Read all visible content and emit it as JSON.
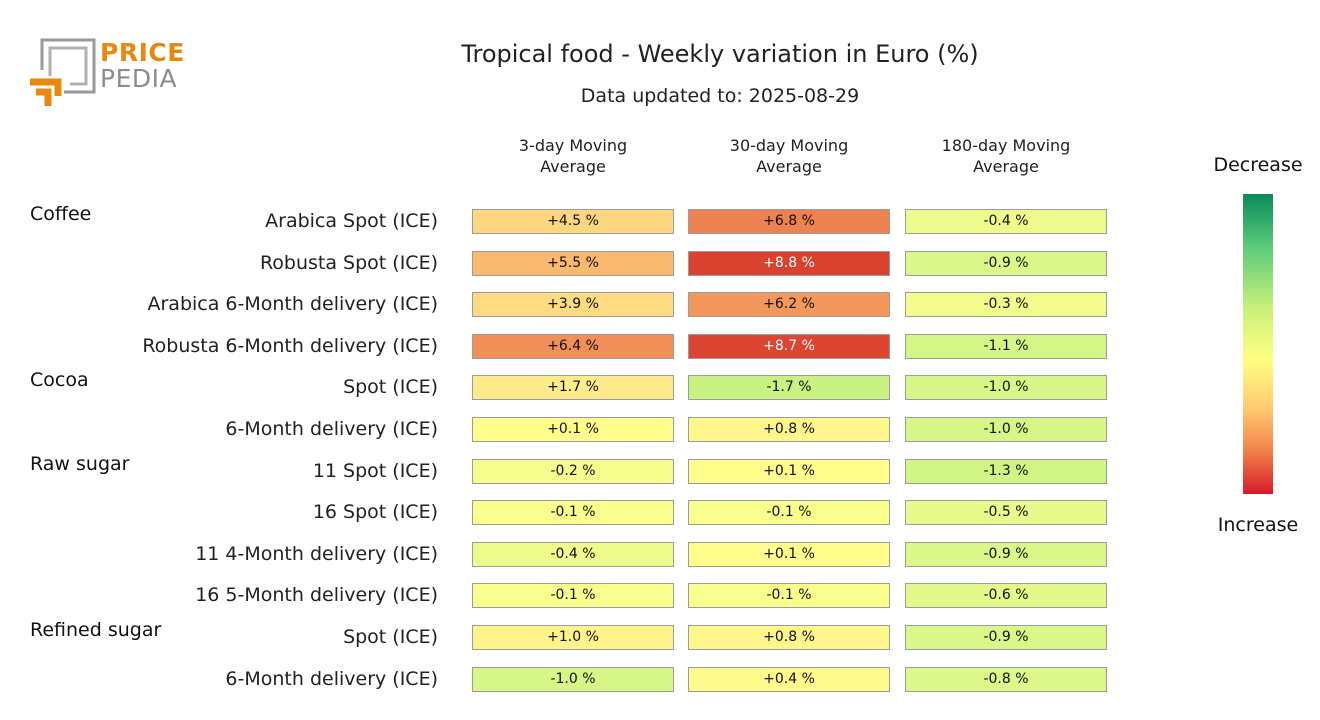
{
  "logo": {
    "line1": "PRICE",
    "line2": "PEDIA"
  },
  "title": "Tropical food - Weekly variation in Euro (%)",
  "subtitle": "Data updated to: 2025-08-29",
  "columns": [
    "3-day Moving\nAverage",
    "30-day Moving\nAverage",
    "180-day Moving\nAverage"
  ],
  "legend": {
    "top_label": "Decrease",
    "bottom_label": "Increase"
  },
  "chart_data": {
    "type": "heatmap",
    "title": "Tropical food - Weekly variation in Euro (%)",
    "subtitle": "Data updated to: 2025-08-29",
    "columns": [
      "3-day Moving Average",
      "30-day Moving Average",
      "180-day Moving Average"
    ],
    "unit": "%",
    "groups": [
      {
        "name": "Coffee",
        "rows": [
          {
            "label": "Arabica Spot (ICE)",
            "values": [
              4.5,
              6.8,
              -0.4
            ],
            "texts": [
              "+4.5 %",
              "+6.8 %",
              "-0.4 %"
            ]
          },
          {
            "label": "Robusta Spot (ICE)",
            "values": [
              5.5,
              8.8,
              -0.9
            ],
            "texts": [
              "+5.5 %",
              "+8.8 %",
              "-0.9 %"
            ]
          },
          {
            "label": "Arabica 6-Month delivery (ICE)",
            "values": [
              3.9,
              6.2,
              -0.3
            ],
            "texts": [
              "+3.9 %",
              "+6.2 %",
              "-0.3 %"
            ]
          },
          {
            "label": "Robusta 6-Month delivery (ICE)",
            "values": [
              6.4,
              8.7,
              -1.1
            ],
            "texts": [
              "+6.4 %",
              "+8.7 %",
              "-1.1 %"
            ]
          }
        ]
      },
      {
        "name": "Cocoa",
        "rows": [
          {
            "label": "Spot (ICE)",
            "values": [
              1.7,
              -1.7,
              -1.0
            ],
            "texts": [
              "+1.7 %",
              "-1.7 %",
              "-1.0 %"
            ]
          },
          {
            "label": "6-Month delivery (ICE)",
            "values": [
              0.1,
              0.8,
              -1.0
            ],
            "texts": [
              "+0.1 %",
              "+0.8 %",
              "-1.0 %"
            ]
          }
        ]
      },
      {
        "name": "Raw sugar",
        "rows": [
          {
            "label": "11 Spot (ICE)",
            "values": [
              -0.2,
              0.1,
              -1.3
            ],
            "texts": [
              "-0.2 %",
              "+0.1 %",
              "-1.3 %"
            ]
          },
          {
            "label": "16 Spot (ICE)",
            "values": [
              -0.1,
              -0.1,
              -0.5
            ],
            "texts": [
              "-0.1 %",
              "-0.1 %",
              "-0.5 %"
            ]
          },
          {
            "label": "11 4-Month delivery (ICE)",
            "values": [
              -0.4,
              0.1,
              -0.9
            ],
            "texts": [
              "-0.4 %",
              "+0.1 %",
              "-0.9 %"
            ]
          },
          {
            "label": "16 5-Month delivery (ICE)",
            "values": [
              -0.1,
              -0.1,
              -0.6
            ],
            "texts": [
              "-0.1 %",
              "-0.1 %",
              "-0.6 %"
            ]
          }
        ]
      },
      {
        "name": "Refined sugar",
        "rows": [
          {
            "label": "Spot (ICE)",
            "values": [
              1.0,
              0.8,
              -0.9
            ],
            "texts": [
              "+1.0 %",
              "+0.8 %",
              "-0.9 %"
            ]
          },
          {
            "label": "6-Month delivery (ICE)",
            "values": [
              -1.0,
              0.4,
              -0.8
            ],
            "texts": [
              "-1.0 %",
              "+0.4 %",
              "-0.8 %"
            ]
          }
        ]
      }
    ],
    "color_scale": {
      "low_label": "Decrease",
      "high_label": "Increase",
      "low_color": "#0a8a5a",
      "mid_color": "#ffff80",
      "high_color": "#d7192a"
    }
  }
}
